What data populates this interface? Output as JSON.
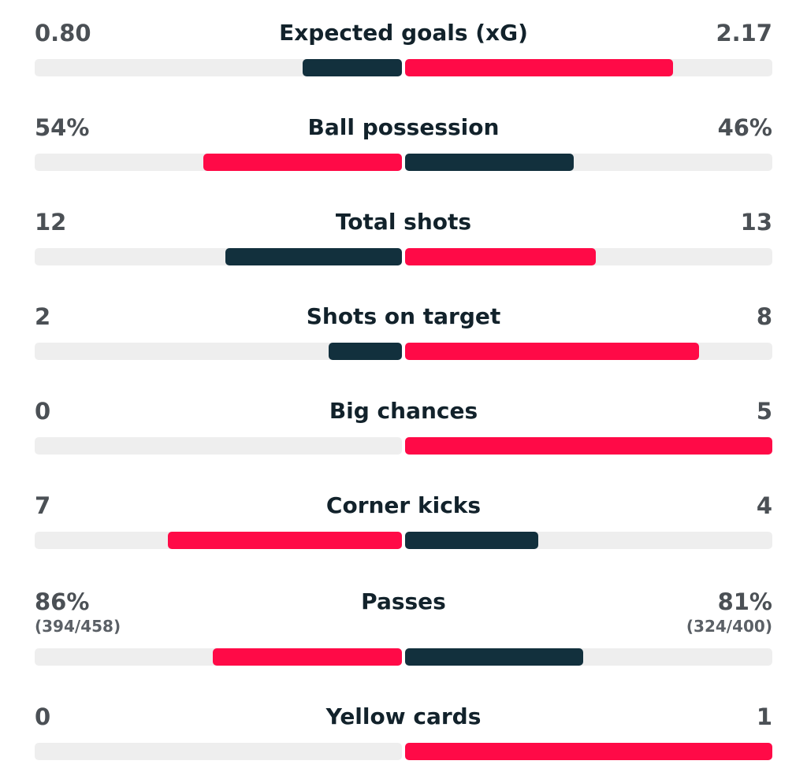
{
  "colors": {
    "dark": "#12303d",
    "red": "#ff0a47",
    "track": "#eeeeee"
  },
  "stats": [
    {
      "label": "Expected goals (xG)",
      "home": "0.80",
      "away": "2.17",
      "home_value": 0.8,
      "away_value": 2.17,
      "home_color": "dark",
      "away_color": "red"
    },
    {
      "label": "Ball possession",
      "home": "54%",
      "away": "46%",
      "home_value": 54,
      "away_value": 46,
      "home_color": "red",
      "away_color": "dark"
    },
    {
      "label": "Total shots",
      "home": "12",
      "away": "13",
      "home_value": 12,
      "away_value": 13,
      "home_color": "dark",
      "away_color": "red"
    },
    {
      "label": "Shots on target",
      "home": "2",
      "away": "8",
      "home_value": 2,
      "away_value": 8,
      "home_color": "dark",
      "away_color": "red"
    },
    {
      "label": "Big chances",
      "home": "0",
      "away": "5",
      "home_value": 0,
      "away_value": 5,
      "home_color": "dark",
      "away_color": "red"
    },
    {
      "label": "Corner kicks",
      "home": "7",
      "away": "4",
      "home_value": 7,
      "away_value": 4,
      "home_color": "red",
      "away_color": "dark"
    },
    {
      "label": "Passes",
      "home": "86%",
      "away": "81%",
      "home_sub": "(394/458)",
      "away_sub": "(324/400)",
      "home_value": 86,
      "away_value": 81,
      "home_color": "red",
      "away_color": "dark"
    },
    {
      "label": "Yellow cards",
      "home": "0",
      "away": "1",
      "home_value": 0,
      "away_value": 1,
      "home_color": "dark",
      "away_color": "red"
    }
  ]
}
